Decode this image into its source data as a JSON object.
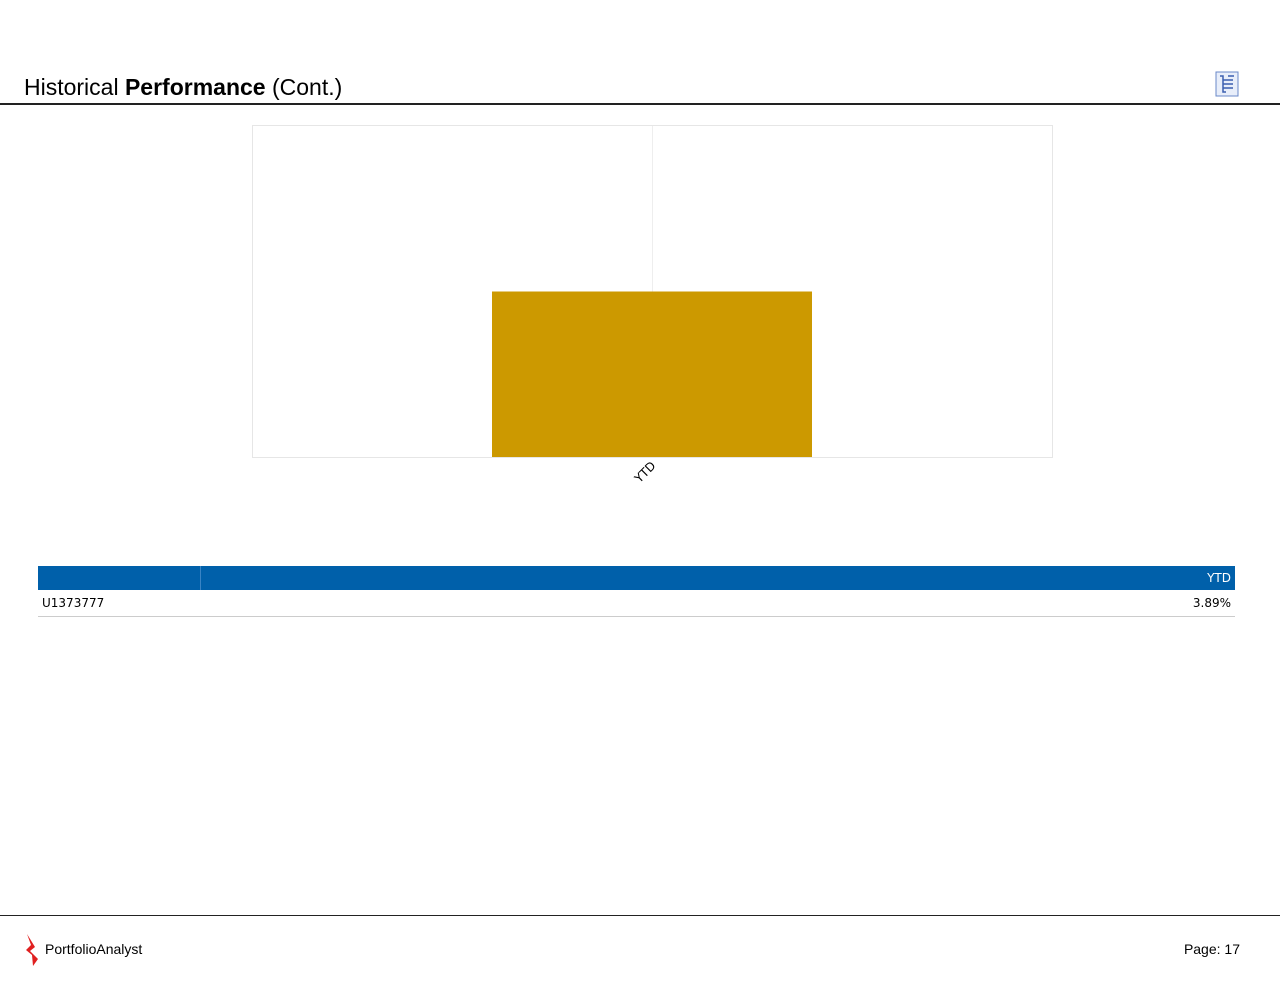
{
  "header": {
    "title_parts": [
      "Historical",
      "Performance",
      "(Cont.)"
    ]
  },
  "chart_data": {
    "type": "bar",
    "categories": [
      "YTD"
    ],
    "values": [
      3.89
    ],
    "color": "#cc9900",
    "ylim": [
      0,
      7.78
    ]
  },
  "table": {
    "columns": [
      "YTD"
    ],
    "rows": [
      [
        "U1373777",
        "3.89%"
      ]
    ]
  },
  "footer": {
    "brand": "PortfolioAnalyst",
    "page": "Page: 17"
  }
}
